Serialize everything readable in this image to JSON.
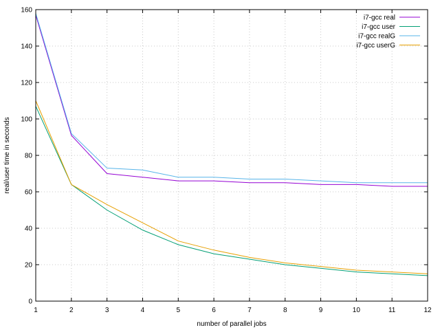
{
  "chart_data": {
    "type": "line",
    "title": "",
    "xlabel": "number of parallel jobs",
    "ylabel": "real/user time in seconds",
    "xlim": [
      1,
      12
    ],
    "ylim": [
      0,
      160
    ],
    "xticks": [
      1,
      2,
      3,
      4,
      5,
      6,
      7,
      8,
      9,
      10,
      11,
      12
    ],
    "yticks": [
      0,
      20,
      40,
      60,
      80,
      100,
      120,
      140,
      160
    ],
    "grid": true,
    "legend_position": "top-right",
    "x": [
      1,
      2,
      3,
      4,
      5,
      6,
      7,
      8,
      9,
      10,
      11,
      12
    ],
    "series": [
      {
        "name": "i7-gcc real",
        "color": "#9400d3",
        "values": [
          157,
          91,
          70,
          68,
          66,
          66,
          65,
          65,
          64,
          64,
          63,
          63
        ]
      },
      {
        "name": "i7-gcc user",
        "color": "#009e73",
        "values": [
          107,
          64,
          50,
          39,
          31,
          26,
          23,
          20,
          18,
          16,
          15,
          14
        ]
      },
      {
        "name": "i7-gcc realG",
        "color": "#56b4e9",
        "values": [
          158,
          92,
          73,
          72,
          68,
          68,
          67,
          67,
          66,
          65,
          65,
          65
        ]
      },
      {
        "name": "i7-gcc userG",
        "color": "#e69f00",
        "values": [
          110,
          64,
          53,
          43,
          33,
          28,
          24,
          21,
          19,
          17,
          16,
          15
        ]
      }
    ]
  }
}
